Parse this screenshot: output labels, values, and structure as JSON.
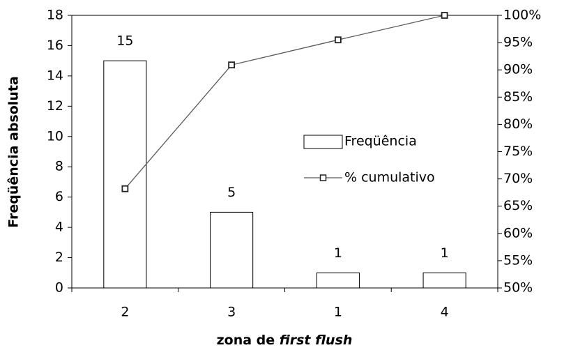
{
  "chart_data": {
    "type": "bar",
    "categories": [
      "2",
      "3",
      "1",
      "4"
    ],
    "series": [
      {
        "name": "Freqüência",
        "type": "bar",
        "color": "#ffffff",
        "values": [
          15,
          5,
          1,
          1
        ]
      },
      {
        "name": "% cumulativo",
        "type": "line",
        "axis": "y2",
        "color": "#595959",
        "values": [
          68.2,
          90.9,
          95.5,
          100
        ]
      }
    ],
    "ylabel": "Freqüência absoluta",
    "xlabel": [
      "zona de ",
      "first flush"
    ],
    "ylim": [
      0,
      18
    ],
    "yticks": [
      0,
      2,
      4,
      6,
      8,
      10,
      12,
      14,
      16,
      18
    ],
    "y2lim": [
      50,
      100
    ],
    "y2ticks": [
      {
        "value": 50,
        "label": "50%"
      },
      {
        "value": 55,
        "label": "55%"
      },
      {
        "value": 60,
        "label": "60%"
      },
      {
        "value": 65,
        "label": "65%"
      },
      {
        "value": 70,
        "label": "70%"
      },
      {
        "value": 75,
        "label": "75%"
      },
      {
        "value": 80,
        "label": "80%"
      },
      {
        "value": 85,
        "label": "85%"
      },
      {
        "value": 90,
        "label": "90%"
      },
      {
        "value": 95,
        "label": "95%"
      },
      {
        "value": 100,
        "label": "100%"
      }
    ],
    "legend": "center-right",
    "grid": false
  }
}
